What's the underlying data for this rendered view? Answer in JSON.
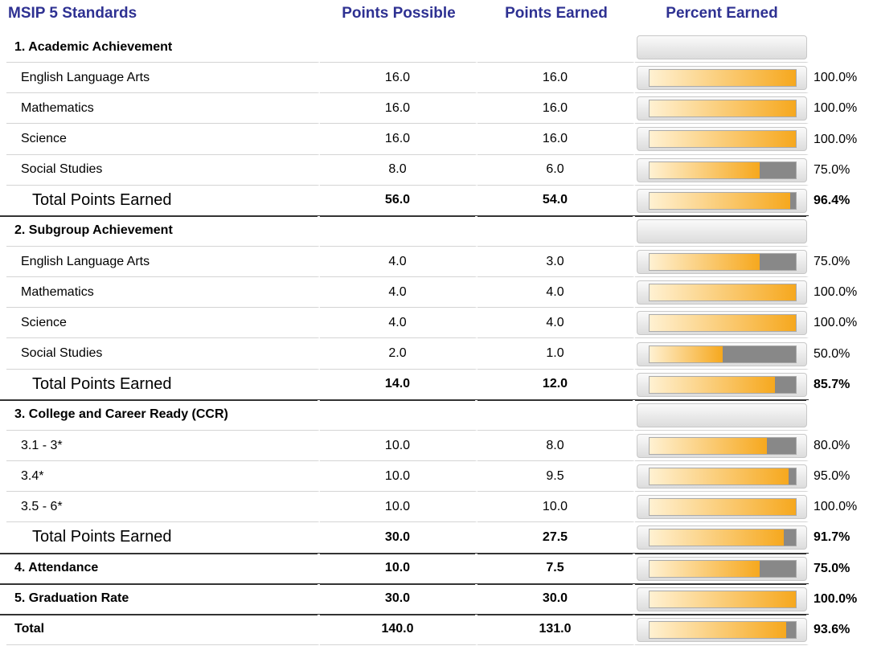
{
  "header": {
    "title": "MSIP 5 Standards",
    "columns": [
      "Points Possible",
      "Points Earned",
      "Percent Earned"
    ]
  },
  "sections": [
    {
      "title": "1. Academic Achievement",
      "items": [
        {
          "label": "English Language Arts",
          "possible": "16.0",
          "earned": "16.0",
          "percent": 100.0,
          "percent_label": "100.0%"
        },
        {
          "label": "Mathematics",
          "possible": "16.0",
          "earned": "16.0",
          "percent": 100.0,
          "percent_label": "100.0%"
        },
        {
          "label": "Science",
          "possible": "16.0",
          "earned": "16.0",
          "percent": 100.0,
          "percent_label": "100.0%"
        },
        {
          "label": "Social Studies",
          "possible": "8.0",
          "earned": "6.0",
          "percent": 75.0,
          "percent_label": "75.0%"
        }
      ],
      "total": {
        "label": "Total Points Earned",
        "possible": "56.0",
        "earned": "54.0",
        "percent": 96.4,
        "percent_label": "96.4%"
      }
    },
    {
      "title": "2. Subgroup Achievement",
      "items": [
        {
          "label": "English Language Arts",
          "possible": "4.0",
          "earned": "3.0",
          "percent": 75.0,
          "percent_label": "75.0%"
        },
        {
          "label": "Mathematics",
          "possible": "4.0",
          "earned": "4.0",
          "percent": 100.0,
          "percent_label": "100.0%"
        },
        {
          "label": "Science",
          "possible": "4.0",
          "earned": "4.0",
          "percent": 100.0,
          "percent_label": "100.0%"
        },
        {
          "label": "Social Studies",
          "possible": "2.0",
          "earned": "1.0",
          "percent": 50.0,
          "percent_label": "50.0%"
        }
      ],
      "total": {
        "label": "Total Points Earned",
        "possible": "14.0",
        "earned": "12.0",
        "percent": 85.7,
        "percent_label": "85.7%"
      }
    },
    {
      "title": "3. College and Career Ready (CCR)",
      "items": [
        {
          "label": "3.1 - 3*",
          "possible": "10.0",
          "earned": "8.0",
          "percent": 80.0,
          "percent_label": "80.0%"
        },
        {
          "label": "3.4*",
          "possible": "10.0",
          "earned": "9.5",
          "percent": 95.0,
          "percent_label": "95.0%"
        },
        {
          "label": "3.5 - 6*",
          "possible": "10.0",
          "earned": "10.0",
          "percent": 100.0,
          "percent_label": "100.0%"
        }
      ],
      "total": {
        "label": "Total Points Earned",
        "possible": "30.0",
        "earned": "27.5",
        "percent": 91.7,
        "percent_label": "91.7%"
      }
    }
  ],
  "summary": [
    {
      "label": "4. Attendance",
      "possible": "10.0",
      "earned": "7.5",
      "percent": 75.0,
      "percent_label": "75.0%"
    },
    {
      "label": "5. Graduation Rate",
      "possible": "30.0",
      "earned": "30.0",
      "percent": 100.0,
      "percent_label": "100.0%"
    },
    {
      "label": "Total",
      "possible": "140.0",
      "earned": "131.0",
      "percent": 93.6,
      "percent_label": "93.6%"
    }
  ]
}
